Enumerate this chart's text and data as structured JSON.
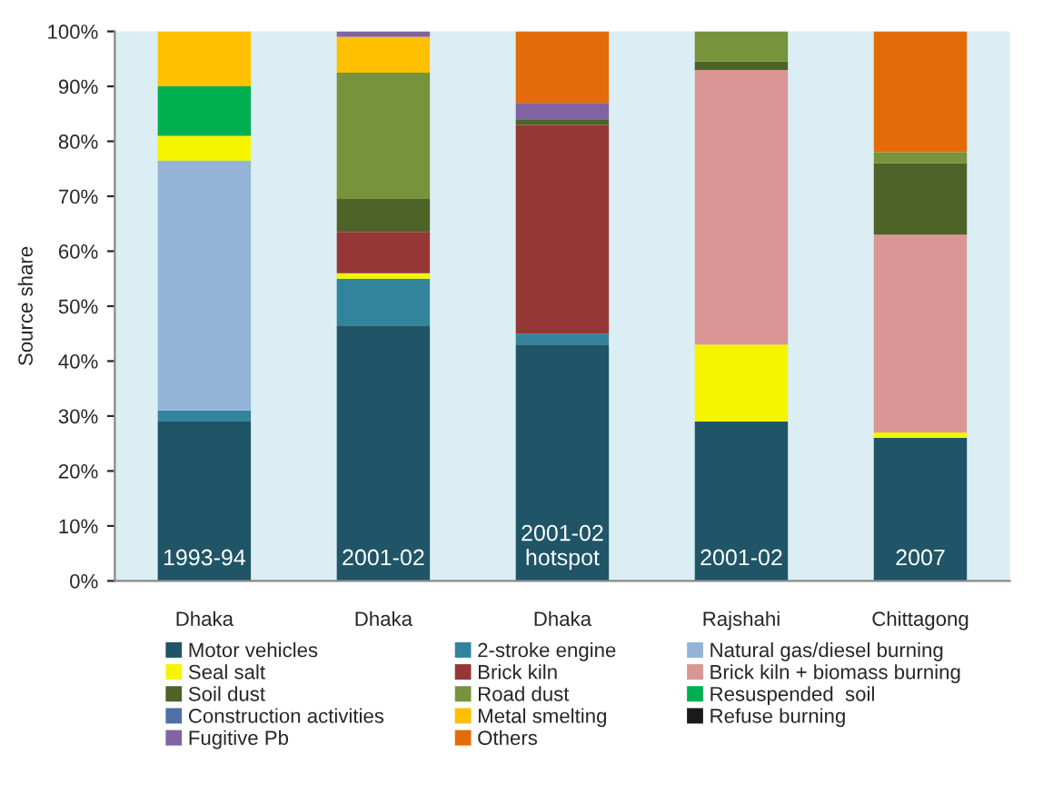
{
  "chart_data": {
    "type": "bar",
    "stacked": true,
    "ylabel": "Source share",
    "categories": [
      "Dhaka",
      "Dhaka",
      "Dhaka",
      "Rajshahi",
      "Chittagong"
    ],
    "annotations": [
      "1993-94",
      "2001-02",
      "2001-02\nhotspot",
      "2001-02",
      "2007"
    ],
    "ylim": [
      0,
      100
    ],
    "yticks": [
      {
        "value": 0,
        "label": "0%"
      },
      {
        "value": 10,
        "label": "10%"
      },
      {
        "value": 20,
        "label": "20%"
      },
      {
        "value": 30,
        "label": "30%"
      },
      {
        "value": 40,
        "label": "40%"
      },
      {
        "value": 50,
        "label": "50%"
      },
      {
        "value": 60,
        "label": "60%"
      },
      {
        "value": 70,
        "label": "70%"
      },
      {
        "value": 80,
        "label": "80%"
      },
      {
        "value": 90,
        "label": "90%"
      },
      {
        "value": 100,
        "label": "100%"
      }
    ],
    "grid": false,
    "legend": "bottom",
    "series": [
      {
        "name": "Motor vehicles",
        "color": "#1f5566",
        "values": [
          29,
          46.5,
          43,
          29,
          26
        ]
      },
      {
        "name": "2-stroke engine",
        "color": "#31849b",
        "values": [
          2,
          8.5,
          2,
          null,
          null
        ]
      },
      {
        "name": "Natural gas/diesel burning",
        "color": "#95b3d7",
        "values": [
          45.5,
          null,
          null,
          null,
          null
        ]
      },
      {
        "name": "Seal salt",
        "color": "#f5f500",
        "values": [
          4.5,
          1,
          null,
          14,
          1
        ]
      },
      {
        "name": "Brick kiln",
        "color": "#953735",
        "values": [
          null,
          7.5,
          38,
          null,
          null
        ]
      },
      {
        "name": "Brick kiln + biomass burning",
        "color": "#d99694",
        "values": [
          null,
          null,
          null,
          50,
          36
        ]
      },
      {
        "name": "Soil dust",
        "color": "#4f6228",
        "values": [
          null,
          6,
          1,
          1.5,
          13
        ]
      },
      {
        "name": "Road dust",
        "color": "#77933c",
        "values": [
          null,
          23,
          null,
          5.5,
          2
        ]
      },
      {
        "name": "Resuspended  soil",
        "color": "#00b050",
        "values": [
          9,
          null,
          null,
          null,
          null
        ]
      },
      {
        "name": "Construction activities",
        "color": "#4f6fa6",
        "values": [
          null,
          null,
          null,
          null,
          null
        ]
      },
      {
        "name": "Metal smelting",
        "color": "#ffc000",
        "values": [
          10,
          6.5,
          null,
          null,
          null
        ]
      },
      {
        "name": "Refuse burning",
        "color": "#1a1a1a",
        "values": [
          null,
          null,
          null,
          null,
          null
        ]
      },
      {
        "name": "Fugitive Pb",
        "color": "#8064a2",
        "values": [
          null,
          1,
          3,
          null,
          null
        ]
      },
      {
        "name": "Others",
        "color": "#e36c09",
        "values": [
          null,
          null,
          13,
          null,
          22
        ]
      }
    ]
  }
}
